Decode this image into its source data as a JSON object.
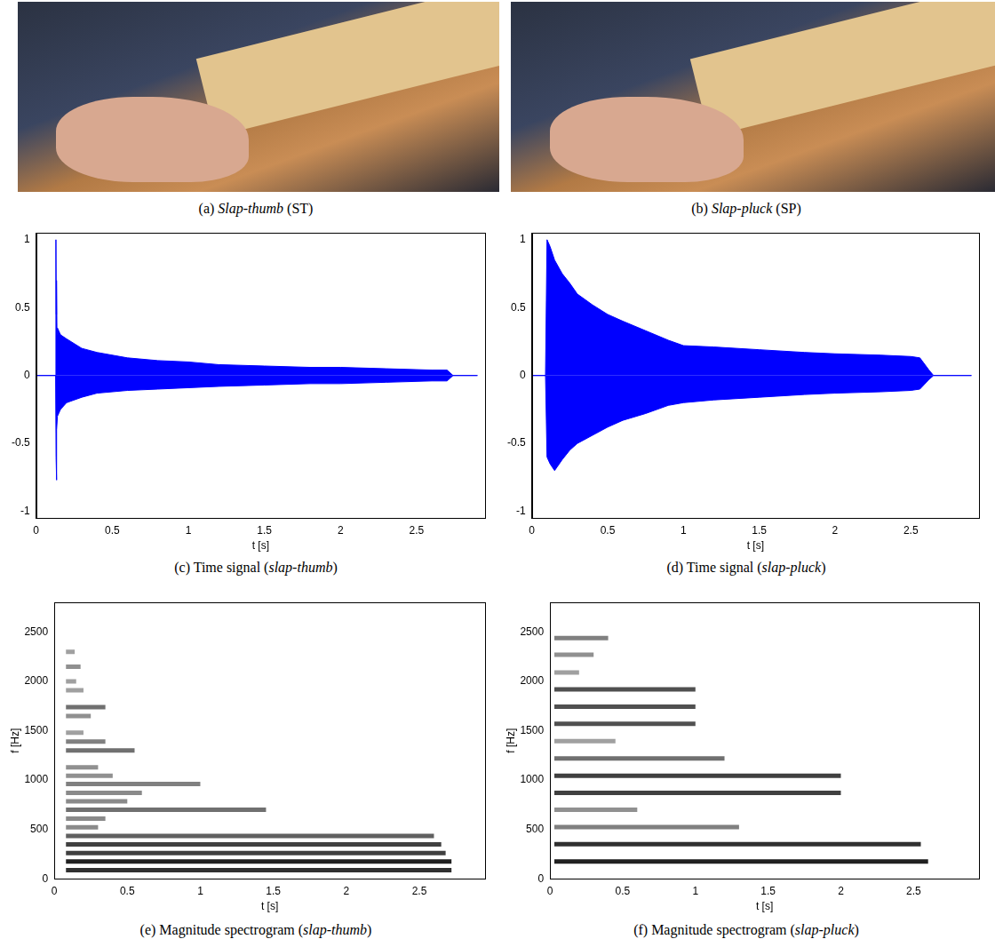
{
  "images": [
    {
      "caption": [
        {
          "text": "(a) "
        },
        {
          "text": "Slap-thumb",
          "italic": true
        },
        {
          "text": " (ST)"
        }
      ]
    },
    {
      "caption": [
        {
          "text": "(b) "
        },
        {
          "text": "Slap-pluck",
          "italic": true
        },
        {
          "text": " (SP)"
        }
      ]
    }
  ],
  "chart_data": [
    {
      "type": "area",
      "caption": [
        {
          "text": "(c) Time signal ("
        },
        {
          "text": "slap-thumb",
          "italic": true
        },
        {
          "text": ")"
        }
      ],
      "x_label": "t [s]",
      "xlim": [
        0,
        2.95
      ],
      "xticks": [
        0,
        0.5,
        1,
        1.5,
        2,
        2.5
      ],
      "ylim": [
        -1.05,
        1.05
      ],
      "yticks": [
        -1,
        -0.5,
        0,
        0.5,
        1
      ],
      "grid": false,
      "series": [
        {
          "color": "#0000ff",
          "x": [
            0,
            0.128,
            0.13,
            0.132,
            0.134,
            0.137,
            0.14,
            0.16,
            0.2,
            0.3,
            0.4,
            0.6,
            0.8,
            1.0,
            1.2,
            1.5,
            1.8,
            2.0,
            2.3,
            2.6,
            2.7,
            2.74,
            2.9
          ],
          "values": [
            0,
            0,
            1,
            0.45,
            0.7,
            0.3,
            0.35,
            0.3,
            0.27,
            0.2,
            0.17,
            0.13,
            0.11,
            0.1,
            0.08,
            0.07,
            0.06,
            0.06,
            0.05,
            0.04,
            0.04,
            0,
            0
          ]
        },
        {
          "color": "#0000ff",
          "x": [
            0,
            0.128,
            0.131,
            0.133,
            0.136,
            0.14,
            0.16,
            0.2,
            0.3,
            0.4,
            0.6,
            0.8,
            1.0,
            1.2,
            1.5,
            1.8,
            2.0,
            2.3,
            2.6,
            2.7,
            2.74,
            2.9
          ],
          "values": [
            0,
            0,
            -0.6,
            -0.77,
            -0.4,
            -0.3,
            -0.25,
            -0.2,
            -0.16,
            -0.13,
            -0.11,
            -0.1,
            -0.09,
            -0.08,
            -0.07,
            -0.06,
            -0.06,
            -0.05,
            -0.04,
            -0.04,
            0,
            0
          ]
        }
      ]
    },
    {
      "type": "area",
      "caption": [
        {
          "text": "(d) Time signal ("
        },
        {
          "text": "slap-pluck",
          "italic": true
        },
        {
          "text": ")"
        }
      ],
      "x_label": "t [s]",
      "xlim": [
        0,
        2.95
      ],
      "xticks": [
        0,
        0.5,
        1,
        1.5,
        2,
        2.5
      ],
      "ylim": [
        -1.05,
        1.05
      ],
      "yticks": [
        -1,
        -0.5,
        0,
        0.5,
        1
      ],
      "grid": false,
      "series": [
        {
          "color": "#0000ff",
          "x": [
            0,
            0.09,
            0.1,
            0.12,
            0.15,
            0.2,
            0.25,
            0.3,
            0.4,
            0.5,
            0.6,
            0.75,
            0.9,
            1.0,
            1.2,
            1.5,
            1.8,
            2.0,
            2.3,
            2.5,
            2.56,
            2.62,
            2.65,
            2.9
          ],
          "values": [
            0,
            0,
            1,
            0.95,
            0.85,
            0.75,
            0.68,
            0.6,
            0.52,
            0.45,
            0.4,
            0.33,
            0.26,
            0.22,
            0.21,
            0.19,
            0.17,
            0.16,
            0.15,
            0.14,
            0.13,
            0.04,
            0,
            0
          ]
        },
        {
          "color": "#0000ff",
          "x": [
            0,
            0.09,
            0.1,
            0.12,
            0.15,
            0.2,
            0.25,
            0.3,
            0.4,
            0.5,
            0.6,
            0.75,
            0.9,
            1.0,
            1.2,
            1.5,
            1.8,
            2.0,
            2.3,
            2.5,
            2.56,
            2.62,
            2.65,
            2.9
          ],
          "values": [
            0,
            0,
            -0.6,
            -0.65,
            -0.7,
            -0.62,
            -0.55,
            -0.5,
            -0.44,
            -0.38,
            -0.33,
            -0.28,
            -0.22,
            -0.2,
            -0.18,
            -0.16,
            -0.14,
            -0.13,
            -0.12,
            -0.11,
            -0.1,
            -0.03,
            0,
            0
          ]
        }
      ]
    },
    {
      "type": "line",
      "caption": [
        {
          "text": "(e) Magnitude spectrogram ("
        },
        {
          "text": "slap-thumb",
          "italic": true
        },
        {
          "text": ")"
        }
      ],
      "x_label": "t [s]",
      "y_label": "f [Hz]",
      "xlim": [
        0,
        2.95
      ],
      "xticks": [
        0,
        0.5,
        1,
        1.5,
        2,
        2.5
      ],
      "ylim": [
        0,
        2800
      ],
      "yticks": [
        0,
        500,
        1000,
        1500,
        2000,
        2500
      ],
      "grid": false,
      "series": [
        {
          "color": "#303030",
          "x": [
            0.08,
            2.72
          ],
          "values": [
            87,
            87
          ]
        },
        {
          "color": "#202020",
          "x": [
            0.08,
            2.72
          ],
          "values": [
            174,
            174
          ]
        },
        {
          "color": "#404040",
          "x": [
            0.08,
            2.68
          ],
          "values": [
            261,
            261
          ]
        },
        {
          "color": "#404040",
          "x": [
            0.08,
            2.65
          ],
          "values": [
            348,
            348
          ]
        },
        {
          "color": "#606060",
          "x": [
            0.08,
            2.6
          ],
          "values": [
            435,
            435
          ]
        },
        {
          "color": "#8a8a8a",
          "x": [
            0.08,
            0.3
          ],
          "values": [
            522,
            522
          ]
        },
        {
          "color": "#8a8a8a",
          "x": [
            0.08,
            0.35
          ],
          "values": [
            610,
            610
          ]
        },
        {
          "color": "#707070",
          "x": [
            0.08,
            1.45
          ],
          "values": [
            700,
            700
          ]
        },
        {
          "color": "#8a8a8a",
          "x": [
            0.08,
            0.5
          ],
          "values": [
            785,
            785
          ]
        },
        {
          "color": "#8a8a8a",
          "x": [
            0.08,
            0.6
          ],
          "values": [
            870,
            870
          ]
        },
        {
          "color": "#808080",
          "x": [
            0.08,
            1.0
          ],
          "values": [
            960,
            960
          ]
        },
        {
          "color": "#909090",
          "x": [
            0.08,
            0.4
          ],
          "values": [
            1045,
            1045
          ]
        },
        {
          "color": "#909090",
          "x": [
            0.08,
            0.3
          ],
          "values": [
            1130,
            1130
          ]
        },
        {
          "color": "#707070",
          "x": [
            0.08,
            0.55
          ],
          "values": [
            1300,
            1300
          ]
        },
        {
          "color": "#808080",
          "x": [
            0.08,
            0.35
          ],
          "values": [
            1390,
            1390
          ]
        },
        {
          "color": "#a0a0a0",
          "x": [
            0.08,
            0.2
          ],
          "values": [
            1480,
            1480
          ]
        },
        {
          "color": "#909090",
          "x": [
            0.08,
            0.25
          ],
          "values": [
            1650,
            1650
          ]
        },
        {
          "color": "#707070",
          "x": [
            0.08,
            0.35
          ],
          "values": [
            1740,
            1740
          ]
        },
        {
          "color": "#a0a0a0",
          "x": [
            0.08,
            0.2
          ],
          "values": [
            1910,
            1910
          ]
        },
        {
          "color": "#a0a0a0",
          "x": [
            0.08,
            0.15
          ],
          "values": [
            2000,
            2000
          ]
        },
        {
          "color": "#909090",
          "x": [
            0.08,
            0.18
          ],
          "values": [
            2150,
            2150
          ]
        },
        {
          "color": "#a0a0a0",
          "x": [
            0.08,
            0.14
          ],
          "values": [
            2300,
            2300
          ]
        }
      ]
    },
    {
      "type": "line",
      "caption": [
        {
          "text": "(f) Magnitude spectrogram ("
        },
        {
          "text": "slap-pluck",
          "italic": true
        },
        {
          "text": ")"
        }
      ],
      "x_label": "t [s]",
      "y_label": "f [Hz]",
      "xlim": [
        0,
        2.95
      ],
      "xticks": [
        0,
        0.5,
        1,
        1.5,
        2,
        2.5
      ],
      "ylim": [
        0,
        2800
      ],
      "yticks": [
        0,
        500,
        1000,
        1500,
        2000,
        2500
      ],
      "grid": false,
      "series": [
        {
          "color": "#202020",
          "x": [
            0.03,
            2.6
          ],
          "values": [
            175,
            175
          ]
        },
        {
          "color": "#303030",
          "x": [
            0.03,
            2.55
          ],
          "values": [
            350,
            350
          ]
        },
        {
          "color": "#808080",
          "x": [
            0.03,
            1.3
          ],
          "values": [
            525,
            525
          ]
        },
        {
          "color": "#909090",
          "x": [
            0.03,
            0.6
          ],
          "values": [
            700,
            700
          ]
        },
        {
          "color": "#404040",
          "x": [
            0.03,
            2.0
          ],
          "values": [
            870,
            870
          ]
        },
        {
          "color": "#404040",
          "x": [
            0.03,
            2.0
          ],
          "values": [
            1045,
            1045
          ]
        },
        {
          "color": "#707070",
          "x": [
            0.03,
            1.2
          ],
          "values": [
            1220,
            1220
          ]
        },
        {
          "color": "#a0a0a0",
          "x": [
            0.03,
            0.45
          ],
          "values": [
            1395,
            1395
          ]
        },
        {
          "color": "#505050",
          "x": [
            0.03,
            1.0
          ],
          "values": [
            1570,
            1570
          ]
        },
        {
          "color": "#505050",
          "x": [
            0.03,
            1.0
          ],
          "values": [
            1745,
            1745
          ]
        },
        {
          "color": "#505050",
          "x": [
            0.03,
            1.0
          ],
          "values": [
            1920,
            1920
          ]
        },
        {
          "color": "#a0a0a0",
          "x": [
            0.03,
            0.2
          ],
          "values": [
            2090,
            2090
          ]
        },
        {
          "color": "#909090",
          "x": [
            0.03,
            0.3
          ],
          "values": [
            2270,
            2270
          ]
        },
        {
          "color": "#808080",
          "x": [
            0.03,
            0.4
          ],
          "values": [
            2440,
            2440
          ]
        }
      ]
    }
  ]
}
